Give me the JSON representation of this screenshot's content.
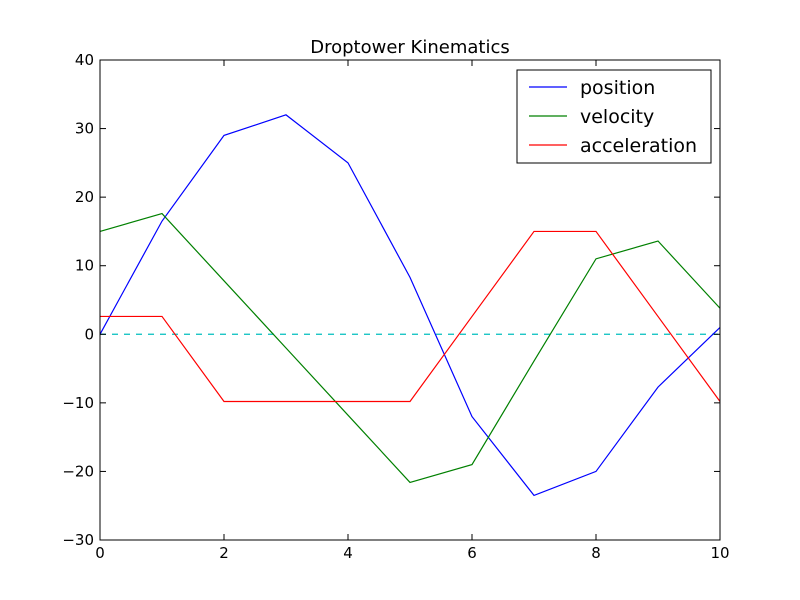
{
  "chart_data": {
    "type": "line",
    "title": "Droptower Kinematics",
    "xlabel": "",
    "ylabel": "",
    "xlim": [
      0,
      10
    ],
    "ylim": [
      -30,
      40
    ],
    "xticks": [
      0,
      2,
      4,
      6,
      8,
      10
    ],
    "yticks": [
      -30,
      -20,
      -10,
      0,
      10,
      20,
      30,
      40
    ],
    "xtick_labels": [
      "0",
      "2",
      "4",
      "6",
      "8",
      "10"
    ],
    "ytick_labels": [
      "−30",
      "−20",
      "−10",
      "0",
      "10",
      "20",
      "30",
      "40"
    ],
    "grid": false,
    "legend_position": "top-right",
    "x": [
      0,
      1,
      2,
      3,
      4,
      5,
      6,
      7,
      8,
      9,
      10
    ],
    "series": [
      {
        "name": "position",
        "color": "#0000ff",
        "values": [
          0,
          16.5,
          29,
          32,
          25,
          8.3,
          -12,
          -23.5,
          -20,
          -7.7,
          1
        ]
      },
      {
        "name": "velocity",
        "color": "#008000",
        "values": [
          15,
          17.6,
          7.8,
          -2,
          -11.8,
          -21.6,
          -19,
          -3.9,
          11,
          13.6,
          3.8
        ]
      },
      {
        "name": "acceleration",
        "color": "#ff0000",
        "values": [
          2.6,
          2.6,
          -9.8,
          -9.8,
          -9.8,
          -9.8,
          2.6,
          15,
          15,
          2.6,
          -9.8
        ]
      }
    ],
    "reference_line": {
      "y": 0,
      "color": "#00bfbf",
      "style": "dashed"
    }
  }
}
